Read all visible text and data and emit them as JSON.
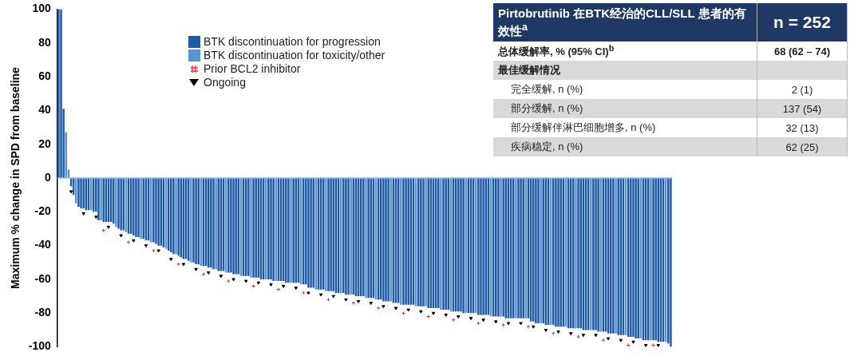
{
  "chart_data": [
    {
      "type": "bar",
      "ylabel": "Maximum % change in SPD from baseline",
      "ylim": [
        -100,
        100
      ],
      "yticks": [
        -100,
        -80,
        -60,
        -40,
        -20,
        0,
        20,
        40,
        60,
        80,
        100
      ],
      "grid": false,
      "legend": "top left",
      "ref_lines": [
        {
          "axis": "y",
          "value": 0,
          "color": "#9dbbe0"
        }
      ],
      "categories": [
        null,
        null,
        null,
        null,
        null,
        null,
        null,
        null,
        null,
        null,
        null,
        null,
        null,
        null,
        null,
        null,
        null,
        null,
        null,
        null,
        null,
        null,
        null,
        null,
        null,
        null,
        null,
        null,
        null,
        null,
        null,
        null,
        null,
        null,
        null,
        null,
        null,
        null,
        null,
        null,
        null,
        null,
        null,
        null,
        null,
        null,
        null,
        null,
        null,
        null,
        null,
        null,
        null,
        null,
        null,
        null,
        null,
        null,
        null,
        null,
        null,
        null,
        null,
        null,
        null,
        null,
        null,
        null,
        null,
        null,
        null,
        null,
        null,
        null,
        null,
        null,
        null,
        null,
        null,
        null,
        null,
        null,
        null,
        null,
        null,
        null,
        null,
        null,
        null,
        null,
        null,
        null,
        null,
        null,
        null,
        null,
        null,
        null,
        null,
        null,
        null,
        null,
        null,
        null,
        null,
        null,
        null,
        null,
        null,
        null,
        null,
        null,
        null,
        null,
        null,
        null,
        null,
        null,
        null,
        null,
        null,
        null,
        null,
        null,
        null,
        null,
        null,
        null,
        null,
        null,
        null,
        null,
        null,
        null,
        null,
        null,
        null,
        null,
        null,
        null,
        null,
        null,
        null,
        null,
        null,
        null,
        null,
        null,
        null,
        null,
        null,
        null,
        null,
        null,
        null,
        null,
        null,
        null,
        null,
        null,
        null,
        null,
        null,
        null,
        null,
        null,
        null,
        null,
        null,
        null,
        null,
        null,
        null,
        null,
        null,
        null,
        null,
        null,
        null,
        null,
        null,
        null,
        null,
        null,
        null,
        null,
        null,
        null,
        null,
        null,
        null,
        null,
        null,
        null,
        null,
        null,
        null,
        null,
        null,
        null,
        null,
        null,
        null,
        null,
        null,
        null,
        null,
        null,
        null,
        null,
        null,
        null,
        null,
        null,
        null,
        null,
        null,
        null,
        null,
        null,
        null,
        null,
        null,
        null,
        null,
        null,
        null,
        null,
        null,
        null,
        null,
        null,
        null,
        null,
        null,
        null,
        null,
        null,
        null,
        null,
        null,
        null,
        null,
        null,
        null,
        null
      ],
      "series": [
        {
          "name": "BTK discontinuation for progression",
          "color": "#1f5aa5",
          "values": [
            100,
            100,
            41,
            null,
            null,
            -5,
            -10,
            null,
            -17,
            -18,
            -18,
            -19,
            -19,
            null,
            -20,
            -20,
            -25,
            null,
            -26,
            -26,
            -26,
            -26,
            -27,
            null,
            -30,
            -31,
            -31,
            null,
            -33,
            -33,
            -34,
            -35,
            -35,
            null,
            -36,
            -37,
            -37,
            null,
            -38,
            -39,
            -40,
            -40,
            -41,
            null,
            -43,
            -44,
            -45,
            null,
            -46,
            -47,
            -48,
            -48,
            -49,
            null,
            -50,
            -51,
            -51,
            null,
            -52,
            -52,
            -53,
            -53,
            -54,
            null,
            -55,
            -55,
            -55,
            null,
            -56,
            -56,
            -57,
            -57,
            -57,
            null,
            -58,
            -58,
            -58,
            null,
            -59,
            -59,
            -59,
            -60,
            -60,
            null,
            -60,
            -60,
            -61,
            null,
            -61,
            -61,
            -61,
            -62,
            -62,
            null,
            -62,
            -62,
            -62,
            null,
            -63,
            -63,
            -65,
            -65,
            -65,
            null,
            -66,
            -66,
            -66,
            null,
            -67,
            -67,
            -67,
            -68,
            -68,
            null,
            -68,
            -69,
            -69,
            null,
            -69,
            -70,
            -70,
            -70,
            -70,
            null,
            -71,
            -71,
            -71,
            null,
            -72,
            -72,
            -73,
            -73,
            -73,
            null,
            -74,
            -74,
            -74,
            null,
            -75,
            -75,
            -75,
            -75,
            -75,
            null,
            -76,
            -76,
            -76,
            null,
            -77,
            -77,
            -77,
            -77,
            -77,
            null,
            -78,
            -78,
            -78,
            null,
            -79,
            -79,
            -79,
            -79,
            -80,
            null,
            -80,
            -80,
            -80,
            null,
            -81,
            -81,
            -81,
            -81,
            -81,
            null,
            -82,
            -82,
            -82,
            null,
            -82,
            -83,
            -83,
            -83,
            -83,
            null,
            -83,
            -83,
            -83,
            null,
            -83,
            -85,
            -85,
            -86,
            -86,
            null,
            -86,
            -87,
            -87,
            null,
            -87,
            -88,
            -88,
            -88,
            -88,
            null,
            -89,
            -89,
            -89,
            null,
            -89,
            -89,
            -90,
            -90,
            -90,
            null,
            -90,
            -90,
            -91,
            null,
            -91,
            -91,
            -92,
            -92,
            -92,
            null,
            -93,
            -93,
            -93,
            null,
            -94,
            -94,
            -94,
            -95,
            -95,
            null,
            -96,
            -96,
            -96,
            null,
            -96,
            -96,
            -97,
            -97,
            -97,
            null,
            -98,
            -100
          ]
        },
        {
          "name": "BTK discontinuation for toxicity/other",
          "color": "#5b93d2",
          "values": [
            null,
            null,
            null,
            27,
            5,
            null,
            null,
            -15,
            null,
            null,
            null,
            null,
            null,
            -19,
            null,
            null,
            null,
            -25,
            null,
            null,
            null,
            null,
            null,
            -29,
            null,
            null,
            null,
            -32,
            null,
            null,
            null,
            null,
            null,
            -36,
            null,
            null,
            null,
            -38,
            null,
            null,
            null,
            null,
            null,
            -42,
            null,
            null,
            null,
            -45,
            null,
            null,
            null,
            null,
            null,
            -50,
            null,
            null,
            null,
            -52,
            null,
            null,
            null,
            null,
            null,
            -54,
            null,
            null,
            null,
            -56,
            null,
            null,
            null,
            null,
            null,
            -58,
            null,
            null,
            null,
            -59,
            null,
            null,
            null,
            null,
            null,
            -60,
            null,
            null,
            null,
            -61,
            null,
            null,
            null,
            null,
            null,
            -62,
            null,
            null,
            null,
            -63,
            null,
            null,
            null,
            null,
            null,
            -66,
            null,
            null,
            null,
            -67,
            null,
            null,
            null,
            null,
            null,
            -68,
            null,
            null,
            null,
            -69,
            null,
            null,
            null,
            null,
            null,
            -71,
            null,
            null,
            null,
            -72,
            null,
            null,
            null,
            null,
            null,
            -73,
            null,
            null,
            null,
            -75,
            null,
            null,
            null,
            null,
            null,
            -76,
            null,
            null,
            null,
            -76,
            null,
            null,
            null,
            null,
            null,
            -78,
            null,
            null,
            null,
            -79,
            null,
            null,
            null,
            null,
            null,
            -80,
            null,
            null,
            null,
            -80,
            null,
            null,
            null,
            null,
            null,
            -82,
            null,
            null,
            null,
            -82,
            null,
            null,
            null,
            null,
            null,
            -83,
            null,
            null,
            null,
            -83,
            null,
            null,
            null,
            null,
            null,
            -86,
            null,
            null,
            null,
            -87,
            null,
            null,
            null,
            null,
            null,
            -88,
            null,
            null,
            null,
            -89,
            null,
            null,
            null,
            null,
            null,
            -90,
            null,
            null,
            null,
            -91,
            null,
            null,
            null,
            null,
            null,
            -92,
            null,
            null,
            null,
            -93,
            null,
            null,
            null,
            null,
            null,
            -95,
            null,
            null,
            null,
            -96,
            null,
            null,
            null,
            null,
            null,
            -97,
            null,
            null
          ]
        },
        {
          "name": "Prior BCL2 inhibitor",
          "type": "scatter",
          "marker": "cross",
          "color": "#e03030",
          "values": [
            null,
            null,
            null,
            null,
            null,
            null,
            null,
            null,
            null,
            null,
            null,
            null,
            null,
            null,
            null,
            null,
            null,
            null,
            -31,
            null,
            null,
            null,
            null,
            null,
            null,
            null,
            null,
            null,
            -38,
            null,
            null,
            null,
            null,
            null,
            null,
            null,
            null,
            null,
            -43,
            null,
            null,
            null,
            null,
            null,
            null,
            null,
            null,
            null,
            -51,
            null,
            null,
            null,
            null,
            null,
            null,
            null,
            null,
            null,
            -57,
            null,
            null,
            null,
            null,
            null,
            null,
            null,
            null,
            null,
            -61,
            null,
            null,
            null,
            null,
            null,
            null,
            null,
            null,
            null,
            -64,
            null,
            null,
            null,
            null,
            null,
            null,
            null,
            null,
            null,
            -66,
            null,
            null,
            null,
            null,
            null,
            null,
            null,
            null,
            null,
            -68,
            null,
            null,
            null,
            null,
            null,
            null,
            null,
            null,
            null,
            -72,
            null,
            null,
            null,
            null,
            null,
            null,
            null,
            null,
            null,
            -74,
            null,
            null,
            null,
            null,
            null,
            null,
            null,
            null,
            null,
            -77,
            null,
            null,
            null,
            null,
            null,
            null,
            null,
            null,
            null,
            -80,
            null,
            null,
            null,
            null,
            null,
            null,
            null,
            null,
            null,
            -82,
            null,
            null,
            null,
            null,
            null,
            null,
            null,
            null,
            null,
            -84,
            null,
            null,
            null,
            null,
            null,
            null,
            null,
            null,
            null,
            -86,
            null,
            null,
            null,
            null,
            null,
            null,
            null,
            null,
            null,
            -87,
            null,
            null,
            null,
            null,
            null,
            null,
            null,
            null,
            null,
            -88,
            null,
            null,
            null,
            null,
            null,
            null,
            null,
            null,
            null,
            -92,
            null,
            null,
            null,
            null,
            null,
            null,
            null,
            null,
            null,
            -94,
            null,
            null,
            null,
            null,
            null,
            null,
            null,
            null,
            null,
            -96,
            null,
            null,
            null,
            null,
            null,
            null,
            null,
            null,
            null,
            -99,
            null,
            null,
            null,
            null,
            null,
            null,
            null,
            null,
            null,
            -99,
            null,
            null,
            null,
            null,
            null,
            null,
            null
          ]
        },
        {
          "name": "Ongoing",
          "type": "scatter",
          "marker": "triangle",
          "color": "#000000",
          "values": [
            null,
            null,
            null,
            null,
            null,
            -8,
            null,
            null,
            null,
            null,
            -21,
            null,
            null,
            null,
            null,
            -23,
            null,
            null,
            null,
            null,
            -29,
            null,
            null,
            null,
            null,
            -34,
            null,
            null,
            null,
            null,
            -37,
            null,
            null,
            null,
            null,
            -40,
            null,
            null,
            null,
            null,
            -43,
            null,
            null,
            null,
            null,
            -48,
            null,
            null,
            null,
            null,
            -51,
            null,
            null,
            null,
            null,
            -54,
            null,
            null,
            null,
            null,
            -56,
            null,
            null,
            null,
            null,
            -58,
            null,
            null,
            null,
            null,
            -60,
            null,
            null,
            null,
            null,
            -61,
            null,
            null,
            null,
            null,
            -62,
            null,
            null,
            null,
            null,
            -63,
            null,
            null,
            null,
            null,
            -64,
            null,
            null,
            null,
            null,
            -65,
            null,
            null,
            null,
            null,
            -68,
            null,
            null,
            null,
            null,
            -69,
            null,
            null,
            null,
            null,
            -70,
            null,
            null,
            null,
            null,
            -72,
            null,
            null,
            null,
            null,
            -73,
            null,
            null,
            null,
            null,
            -74,
            null,
            null,
            null,
            null,
            -76,
            null,
            null,
            null,
            null,
            -77,
            null,
            null,
            null,
            null,
            -78,
            null,
            null,
            null,
            null,
            -79,
            null,
            null,
            null,
            null,
            -80,
            null,
            null,
            null,
            null,
            -81,
            null,
            null,
            null,
            null,
            -82,
            null,
            null,
            null,
            null,
            -83,
            null,
            null,
            null,
            null,
            -84,
            null,
            null,
            null,
            null,
            -85,
            null,
            null,
            null,
            null,
            -86,
            null,
            null,
            null,
            null,
            -86,
            null,
            null,
            null,
            null,
            -88,
            null,
            null,
            null,
            null,
            -90,
            null,
            null,
            null,
            null,
            -91,
            null,
            null,
            null,
            null,
            -92,
            null,
            null,
            null,
            null,
            -93,
            null,
            null,
            null,
            null,
            -93,
            null,
            null,
            null,
            null,
            -95,
            null,
            null,
            null,
            null,
            -96,
            null,
            null,
            null,
            null,
            -97,
            null,
            null,
            null,
            null,
            -99,
            null,
            null,
            null,
            null,
            -99,
            null,
            null,
            null,
            null,
            null
          ]
        }
      ]
    },
    {
      "type": "other",
      "title": "Pirtobrutinib 在BTK经治的CLL/SLL 患者的有效性$^{a}$",
      "annotations": [
        "n = 252"
      ],
      "categories": [
        "总体缓解率, % (95% CI)$^{b}$",
        "最佳缓解情况",
        "完全缓解, n (%)",
        "部分缓解, n (%)",
        "部分缓解伴淋巴细胞增多, n (%)",
        "疾病稳定, n (%)"
      ],
      "value_labels": [
        "68 (62 – 74)",
        null,
        "2 (1)",
        "137 (54)",
        "32 (13)",
        "62 (25)"
      ]
    }
  ]
}
